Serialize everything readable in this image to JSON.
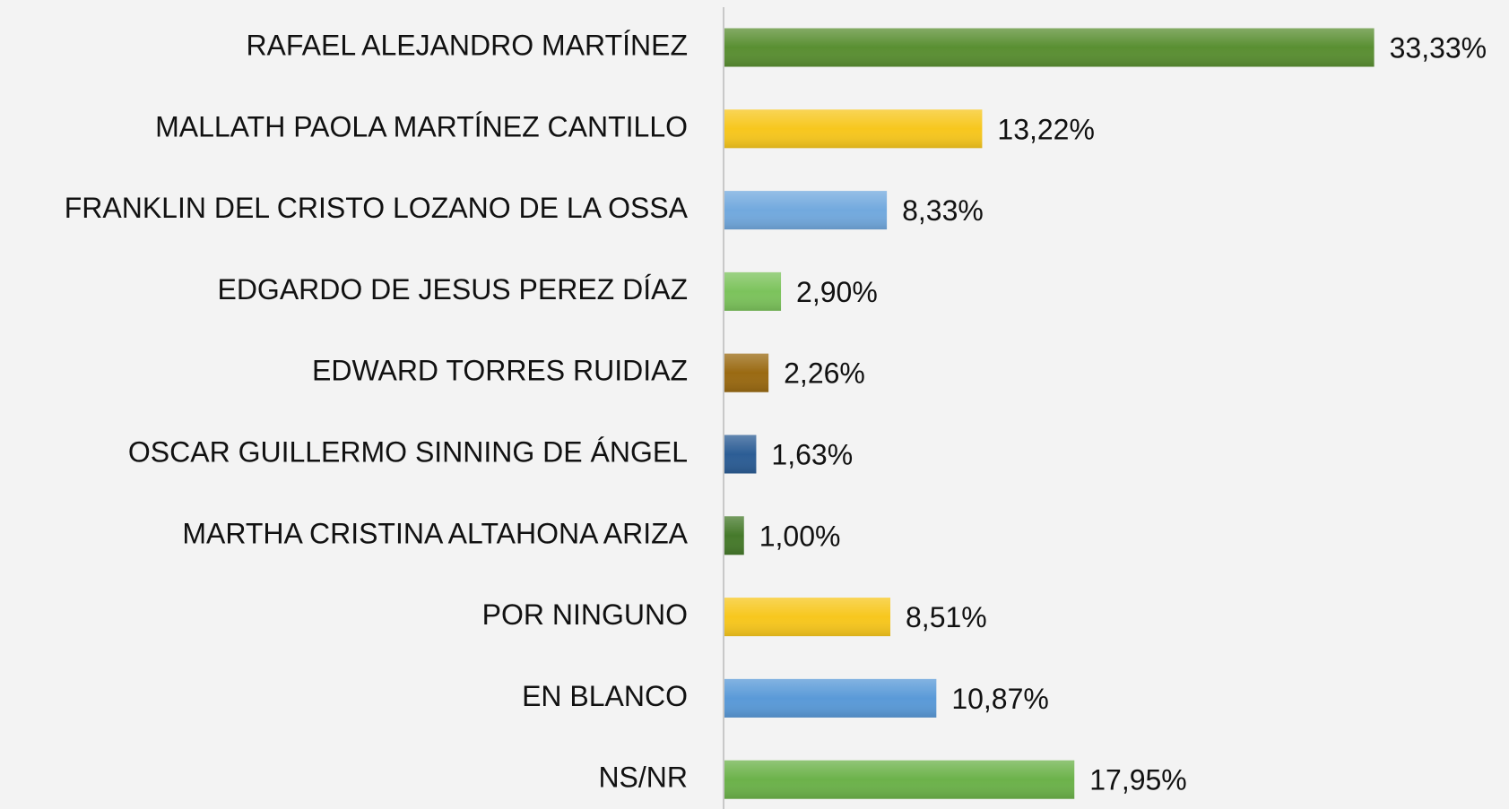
{
  "chart_data": {
    "type": "bar",
    "orientation": "horizontal",
    "categories": [
      "RAFAEL ALEJANDRO MARTÍNEZ",
      "MALLATH PAOLA MARTÍNEZ CANTILLO",
      "FRANKLIN DEL CRISTO LOZANO DE LA OSSA",
      "EDGARDO DE JESUS PEREZ DÍAZ",
      "EDWARD TORRES RUIDIAZ",
      "OSCAR GUILLERMO SINNING DE ÁNGEL",
      "MARTHA CRISTINA ALTAHONA ARIZA",
      "POR NINGUNO",
      "EN BLANCO",
      "NS/NR"
    ],
    "values": [
      33.33,
      13.22,
      8.33,
      2.9,
      2.26,
      1.63,
      1.0,
      8.51,
      10.87,
      17.95
    ],
    "value_labels": [
      "33,33%",
      "13,22%",
      "8,33%",
      "2,90%",
      "2,26%",
      "1,63%",
      "1,00%",
      "8,51%",
      "10,87%",
      "17,95%"
    ],
    "colors": [
      "#5a8f32",
      "#f7c71e",
      "#72a9de",
      "#7cc35c",
      "#9a6a12",
      "#2c5d95",
      "#467a2b",
      "#f7c71e",
      "#5a9ad8",
      "#6cb24a"
    ]
  }
}
